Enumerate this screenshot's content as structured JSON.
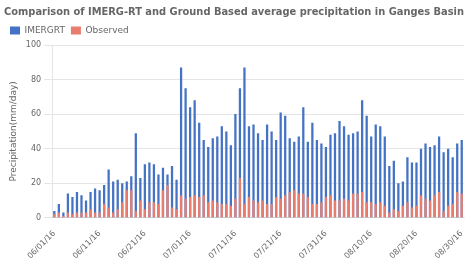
{
  "chart_data": {
    "type": "bar",
    "title": "Comparison of IMERG-RT and Ground Based average precipitation in Ganges Basin",
    "ylabel": "Precipitation(mm/day)",
    "categories": [
      "06/01/16",
      null,
      null,
      null,
      null,
      null,
      null,
      null,
      null,
      null,
      "06/11/16",
      null,
      null,
      null,
      null,
      null,
      null,
      null,
      null,
      null,
      "06/21/16",
      null,
      null,
      null,
      null,
      null,
      null,
      null,
      null,
      null,
      "07/01/16",
      null,
      null,
      null,
      null,
      null,
      null,
      null,
      null,
      null,
      "07/11/16",
      null,
      null,
      null,
      null,
      null,
      null,
      null,
      null,
      null,
      "07/21/16",
      null,
      null,
      null,
      null,
      null,
      null,
      null,
      null,
      null,
      "07/31/16",
      null,
      null,
      null,
      null,
      null,
      null,
      null,
      null,
      null,
      "08/10/16",
      null,
      null,
      null,
      null,
      null,
      null,
      null,
      null,
      null,
      "08/20/16",
      null,
      null,
      null,
      null,
      null,
      null,
      null,
      null,
      null,
      "08/30/16"
    ],
    "series": [
      {
        "name": "IMERGRT",
        "color": "#4472C4",
        "values": [
          4,
          8,
          3,
          14,
          12,
          15,
          13,
          10,
          15,
          17,
          16,
          19,
          28,
          21,
          22,
          20,
          21,
          24,
          49,
          23,
          31,
          32,
          31,
          25,
          29,
          25,
          30,
          22,
          87,
          75,
          64,
          68,
          55,
          45,
          41,
          46,
          47,
          53,
          50,
          42,
          60,
          75,
          87,
          53,
          54,
          49,
          45,
          54,
          50,
          45,
          61,
          59,
          46,
          44,
          47,
          64,
          44,
          55,
          45,
          43,
          41,
          48,
          49,
          56,
          53,
          48,
          49,
          50,
          68,
          59,
          47,
          54,
          53,
          47,
          30,
          33,
          20,
          21,
          35,
          32,
          32,
          40,
          43,
          41,
          42,
          47,
          38,
          40,
          35,
          43,
          45
        ]
      },
      {
        "name": "Observed",
        "color": "#E87D6E",
        "values": [
          2,
          3,
          1,
          3,
          2,
          3,
          3,
          3,
          5,
          3,
          3,
          8,
          6,
          3,
          5,
          9,
          16,
          16,
          4,
          10,
          5,
          9,
          9,
          8,
          16,
          19,
          6,
          5,
          13,
          11,
          12,
          13,
          12,
          13,
          9,
          10,
          9,
          8,
          8,
          7,
          11,
          23,
          8,
          12,
          10,
          9,
          10,
          8,
          8,
          12,
          11,
          13,
          15,
          16,
          14,
          14,
          12,
          8,
          8,
          9,
          12,
          13,
          10,
          10,
          11,
          10,
          14,
          14,
          15,
          9,
          9,
          8,
          9,
          7,
          3,
          5,
          4,
          7,
          9,
          6,
          7,
          13,
          11,
          10,
          13,
          15,
          4,
          7,
          8,
          15,
          14
        ]
      }
    ],
    "ylim": [
      0,
      100
    ],
    "yticks": [
      0,
      20,
      40,
      60,
      80,
      100
    ],
    "grid": true,
    "legend": "upper left"
  }
}
